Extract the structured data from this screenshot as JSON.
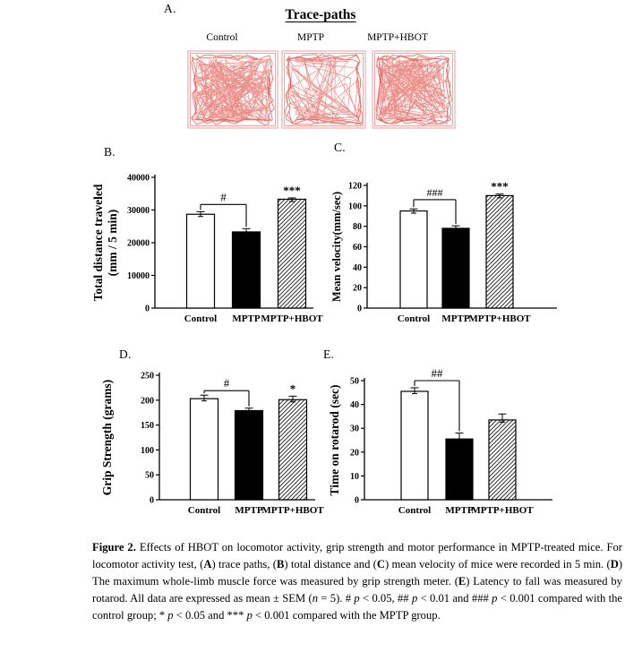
{
  "panelA": {
    "label": "A.",
    "title": "Trace-paths",
    "groups": [
      {
        "label": "Control",
        "trace_density": "dense-whole-arena"
      },
      {
        "label": "MPTP",
        "trace_density": "sparse-edge-biased"
      },
      {
        "label": "MPTP+HBOT",
        "trace_density": "dense-edge-biased"
      }
    ],
    "trace_color": "#e0463e",
    "frame_color": "#f0b4b4"
  },
  "charts": [
    {
      "panel_label": "B.",
      "type": "bar",
      "ylabel_lines": [
        "Total distance traveled",
        "(mm / 5 min)"
      ],
      "categories": [
        "Control",
        "MPTP",
        "MPTP+HBOT"
      ],
      "values": [
        28700,
        23300,
        33300
      ],
      "errors": [
        800,
        1000,
        400
      ],
      "ylim": [
        0,
        40000
      ],
      "yticks": [
        0,
        10000,
        20000,
        30000,
        40000
      ],
      "bar_styles": [
        "white",
        "black",
        "hatch"
      ],
      "bracket": {
        "from": 0,
        "to": 1,
        "label": "#",
        "y_value": 31700
      },
      "stars": {
        "bar": 2,
        "label": "***"
      }
    },
    {
      "panel_label": "C.",
      "type": "bar",
      "ylabel_lines": [
        "Mean velocity(mm/sec)"
      ],
      "categories": [
        "Control",
        "MPTP",
        "MPTP+HBOT"
      ],
      "values": [
        95,
        78,
        110
      ],
      "errors": [
        2,
        2.5,
        1.5
      ],
      "ylim": [
        0,
        120
      ],
      "yticks": [
        0,
        20,
        40,
        60,
        80,
        100,
        120
      ],
      "bar_styles": [
        "white",
        "black",
        "hatch"
      ],
      "bracket": {
        "from": 0,
        "to": 1,
        "label": "###",
        "y_value": 106
      },
      "stars": {
        "bar": 2,
        "label": "***"
      }
    },
    {
      "panel_label": "D.",
      "type": "bar",
      "ylabel_lines": [
        "Grip Strength (grams)"
      ],
      "categories": [
        "Control",
        "MPTP",
        "MPTP+HBOT"
      ],
      "values": [
        203,
        179,
        201
      ],
      "errors": [
        7,
        5,
        7
      ],
      "ylim": [
        0,
        250
      ],
      "yticks": [
        0,
        50,
        100,
        150,
        200,
        250
      ],
      "bar_styles": [
        "white",
        "black",
        "hatch"
      ],
      "bracket": {
        "from": 0,
        "to": 1,
        "label": "#",
        "y_value": 219
      },
      "stars": {
        "bar": 2,
        "label": "*"
      }
    },
    {
      "panel_label": "E.",
      "type": "bar",
      "ylabel_lines": [
        "Time on rotarod (sec)"
      ],
      "categories": [
        "Control",
        "MPTP",
        "MPTP+HBOT"
      ],
      "values": [
        45.5,
        25.5,
        33.5
      ],
      "errors": [
        1.5,
        2.5,
        2.5
      ],
      "ylim": [
        0,
        50
      ],
      "yticks": [
        0,
        10,
        20,
        30,
        40,
        50
      ],
      "bar_styles": [
        "white",
        "black",
        "hatch"
      ],
      "bracket": {
        "from": 0,
        "to": 1,
        "label": "##",
        "y_value": 50
      },
      "stars": null
    }
  ],
  "caption": {
    "runs": [
      {
        "t": "Figure 2.",
        "b": true
      },
      {
        "t": " Effects of HBOT on locomotor activity, grip strength and motor performance in MPTP-treated mice. For locomotor activity test, ("
      },
      {
        "t": "A",
        "b": true
      },
      {
        "t": ") trace paths, ("
      },
      {
        "t": "B",
        "b": true
      },
      {
        "t": ") total distance and ("
      },
      {
        "t": "C",
        "b": true
      },
      {
        "t": ") mean velocity of mice were recorded in 5 min. ("
      },
      {
        "t": "D",
        "b": true
      },
      {
        "t": ") The maximum whole-limb muscle force was measured by grip strength meter. ("
      },
      {
        "t": "E",
        "b": true
      },
      {
        "t": ") Latency to fall was measured by rotarod. All data are expressed as mean ± SEM ("
      },
      {
        "t": "n",
        "i": true
      },
      {
        "t": " = 5). # "
      },
      {
        "t": "p",
        "i": true
      },
      {
        "t": " < 0.05, ## "
      },
      {
        "t": "p",
        "i": true
      },
      {
        "t": " < 0.01 and ### "
      },
      {
        "t": "p",
        "i": true
      },
      {
        "t": " < 0.001 compared with the control group; * "
      },
      {
        "t": "p",
        "i": true
      },
      {
        "t": " < 0.05 and *** "
      },
      {
        "t": "p",
        "i": true
      },
      {
        "t": " < 0.001 compared with the MPTP group."
      }
    ]
  }
}
